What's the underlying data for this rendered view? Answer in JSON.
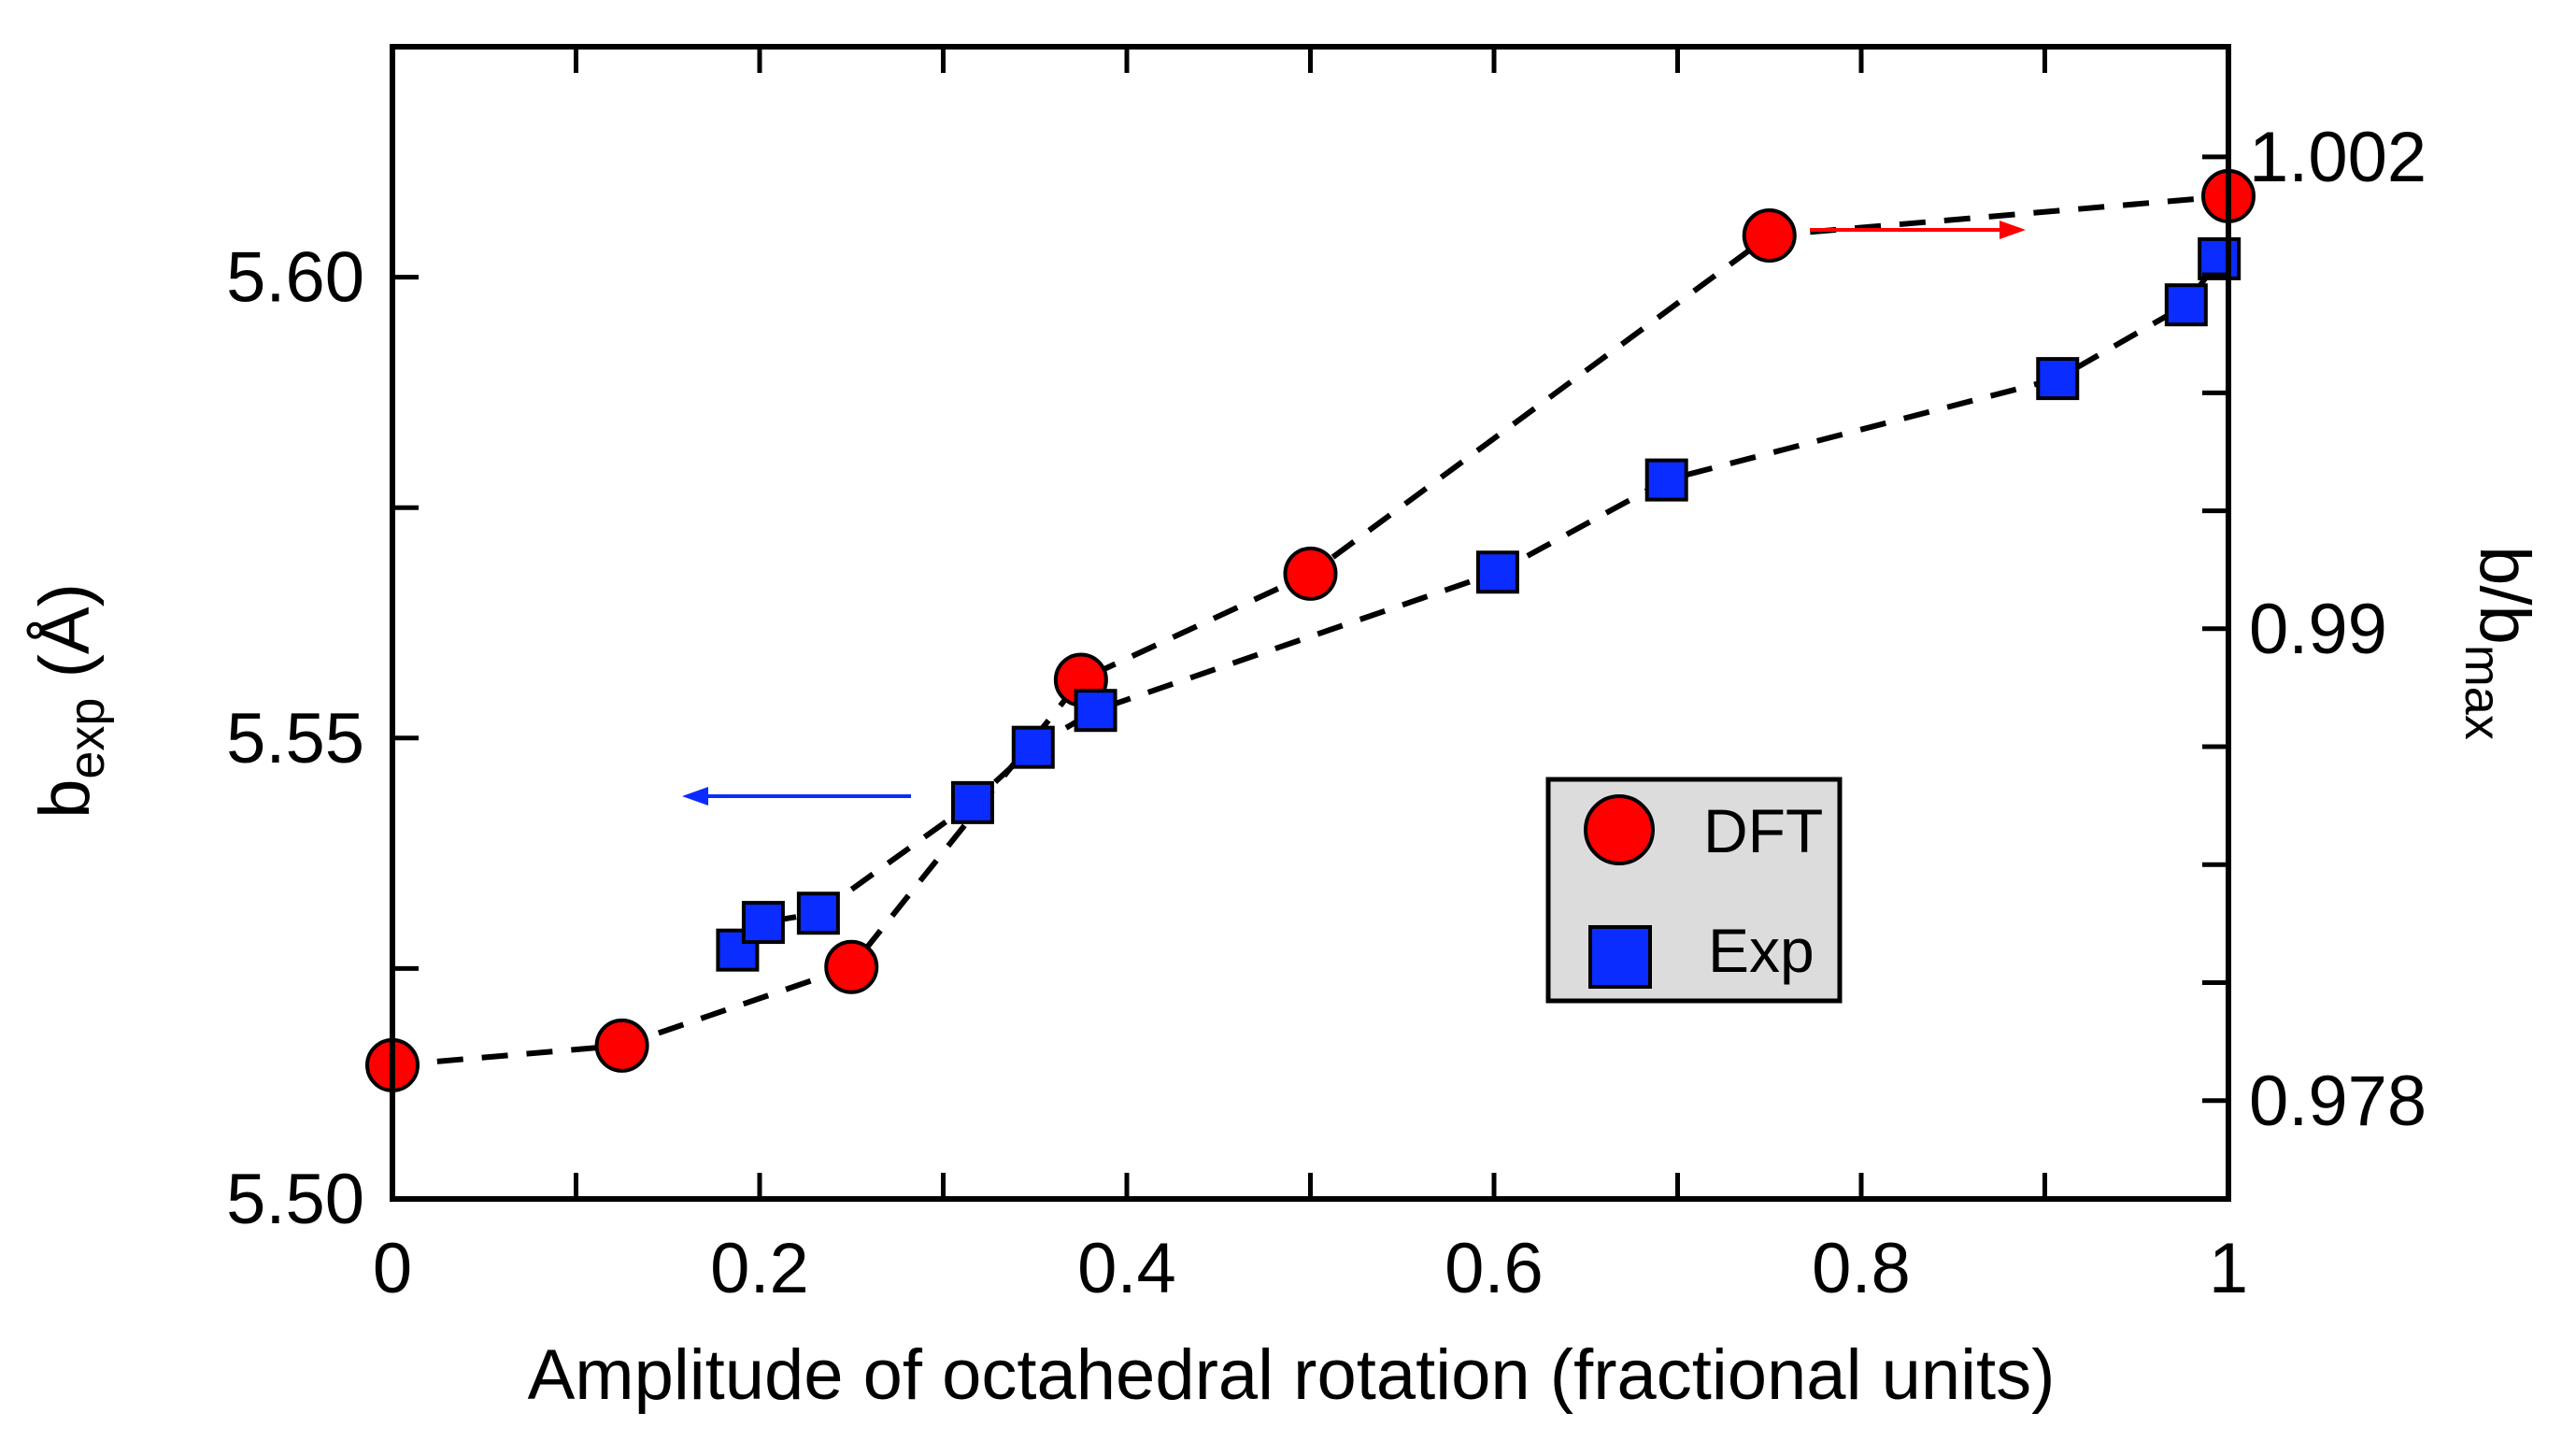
{
  "chart_data": {
    "type": "scatter",
    "xlabel": "Amplitude of octahedral rotation (fractional units)",
    "ylabel_left": {
      "main": "b",
      "sub": "exp",
      "suffix": " (Å)"
    },
    "ylabel_right": {
      "main": "b/b",
      "sub": "max"
    },
    "xlim": [
      0,
      1
    ],
    "ylim_left": [
      5.5,
      5.625
    ],
    "ylim_right": [
      0.9755,
      1.0048
    ],
    "x_ticks": [
      {
        "value": 0,
        "label": "0"
      },
      {
        "value": 0.2,
        "label": "0.2"
      },
      {
        "value": 0.4,
        "label": "0.4"
      },
      {
        "value": 0.6,
        "label": "0.6"
      },
      {
        "value": 0.8,
        "label": "0.8"
      },
      {
        "value": 1,
        "label": "1"
      }
    ],
    "y_left_ticks": [
      {
        "value": 5.5,
        "label": "5.50"
      },
      {
        "value": 5.55,
        "label": "5.55"
      },
      {
        "value": 5.6,
        "label": "5.60"
      }
    ],
    "y_right_ticks": [
      {
        "value": 0.978,
        "label": "0.978"
      },
      {
        "value": 0.99,
        "label": "0.99"
      },
      {
        "value": 1.002,
        "label": "1.002"
      }
    ],
    "series": [
      {
        "name": "DFT",
        "axis": "right",
        "marker": "circle",
        "color": "#ff0000",
        "x": [
          0,
          0.125,
          0.25,
          0.375,
          0.5,
          0.75,
          1.0
        ],
        "y": [
          0.9789,
          0.9794,
          0.9814,
          0.9887,
          0.9914,
          1.0,
          1.001
        ]
      },
      {
        "name": "Exp",
        "axis": "left",
        "marker": "square",
        "color": "#0a2cff",
        "x": [
          0.188,
          0.202,
          0.232,
          0.316,
          0.349,
          0.383,
          0.602,
          0.694,
          0.907,
          0.977,
          0.995
        ],
        "y": [
          5.527,
          5.53,
          5.531,
          5.543,
          5.549,
          5.553,
          5.568,
          5.578,
          5.589,
          5.597,
          5.602
        ]
      }
    ],
    "annotations": [
      {
        "type": "arrow",
        "direction": "left",
        "color": "#0a2cff",
        "meaning": "Exp series uses left axis"
      },
      {
        "type": "arrow",
        "direction": "right",
        "color": "#ff0000",
        "meaning": "DFT series uses right axis"
      }
    ],
    "legend": {
      "position": "center-right",
      "entries": [
        "DFT",
        "Exp"
      ],
      "background": "#dcdcdc"
    }
  }
}
